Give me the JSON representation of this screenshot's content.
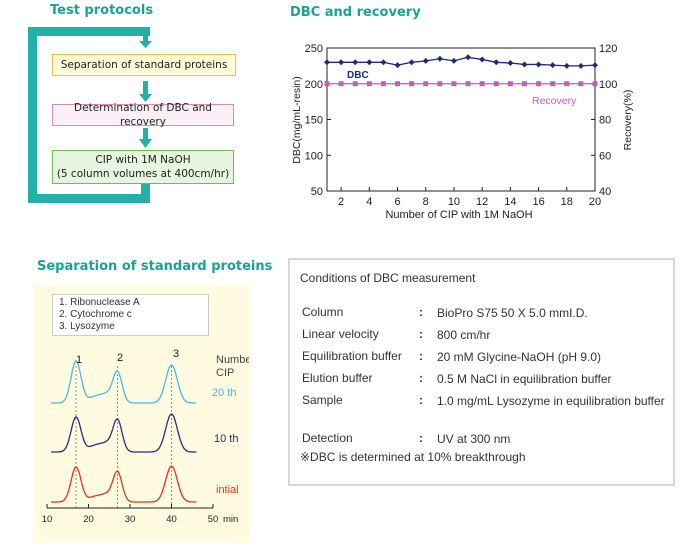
{
  "protocols": {
    "title": "Test protocols",
    "steps": [
      {
        "text": "Separation of standard proteins"
      },
      {
        "text": "Determination of DBC and recovery"
      },
      {
        "text": "CIP with 1M NaOH",
        "sub": "(5 column volumes at 400cm/hr)"
      }
    ]
  },
  "separation": {
    "title": "Separation of standard proteins",
    "legend": [
      "1. Ribonuclease A",
      "2. Cytochrome c",
      "3. Lysozyme"
    ],
    "peak_labels": [
      "1",
      "2",
      "3"
    ],
    "cip_label_line1": "Number of",
    "cip_label_line2": "CIP",
    "traces": [
      {
        "label": "20 th",
        "color": "#4bb7e8"
      },
      {
        "label": "10 th",
        "color": "#2e2a7a"
      },
      {
        "label": "intial",
        "color": "#e0341e"
      }
    ],
    "x_ticks": [
      "10",
      "20",
      "30",
      "40",
      "50"
    ],
    "x_unit": "min"
  },
  "conditions": {
    "title": "Conditions of DBC measurement",
    "rows": [
      {
        "label": "Column",
        "sep": ":",
        "value": "BioPro S75 50 X 5.0 mmI.D."
      },
      {
        "label": "Linear velocity",
        "sep": ":",
        "value": "800 cm/hr"
      },
      {
        "label": "Equilibration buffer",
        "sep": ":",
        "value": "20 mM Glycine-NaOH (pH 9.0)"
      },
      {
        "label": "Elution buffer",
        "sep": ":",
        "value": "0.5 M NaCl in equilibration buffer"
      },
      {
        "label": "Sample",
        "sep": ":",
        "value": "1.0 mg/mL Lysozyme in equilibration buffer"
      },
      {
        "label": "Detection",
        "sep": ":",
        "value": "UV at 300 nm"
      }
    ],
    "note": "※DBC is determined at 10% breakthrough"
  },
  "chart_data": [
    {
      "type": "line",
      "title": "DBC and recovery",
      "xlabel": "Number of CIP with 1M NaOH",
      "ylabel_left": "DBC(mg/mL-resin)",
      "ylabel_right": "Recovery(%)",
      "xlim": [
        1,
        20
      ],
      "ylim_left": [
        50,
        250
      ],
      "ylim_right": [
        40,
        120
      ],
      "x_ticks": [
        2,
        4,
        6,
        8,
        10,
        12,
        14,
        16,
        18,
        20
      ],
      "y_ticks_left": [
        50,
        100,
        150,
        200,
        250
      ],
      "y_ticks_right": [
        40,
        60,
        80,
        100,
        120
      ],
      "grid": false,
      "series": [
        {
          "name": "DBC",
          "axis": "left",
          "color": "#1e2a7a",
          "marker": "diamond",
          "x": [
            1,
            2,
            3,
            4,
            5,
            6,
            7,
            8,
            9,
            10,
            11,
            12,
            13,
            14,
            15,
            16,
            17,
            18,
            19,
            20
          ],
          "values": [
            230,
            230,
            230,
            230,
            230,
            226,
            230,
            232,
            235,
            232,
            237,
            234,
            230,
            229,
            227,
            227,
            226,
            225,
            225,
            226
          ]
        },
        {
          "name": "Recovery",
          "axis": "right",
          "color": "#c35fb3",
          "marker": "square",
          "x": [
            1,
            2,
            3,
            4,
            5,
            6,
            7,
            8,
            9,
            10,
            11,
            12,
            13,
            14,
            15,
            16,
            17,
            18,
            19,
            20
          ],
          "values": [
            100,
            100,
            100,
            100,
            100,
            100,
            100,
            100,
            100,
            100,
            100,
            100,
            100,
            100,
            100,
            100,
            100,
            100,
            100,
            100
          ]
        }
      ]
    },
    {
      "type": "line",
      "title": "Separation of standard proteins",
      "xlabel": "min",
      "xlim": [
        10,
        50
      ],
      "x_ticks": [
        10,
        20,
        30,
        40,
        50
      ],
      "peaks_min": [
        17,
        27,
        40
      ],
      "series": [
        {
          "name": "20 th",
          "color": "#4bb7e8"
        },
        {
          "name": "10 th",
          "color": "#2e2a7a"
        },
        {
          "name": "intial",
          "color": "#e0341e"
        }
      ]
    }
  ]
}
